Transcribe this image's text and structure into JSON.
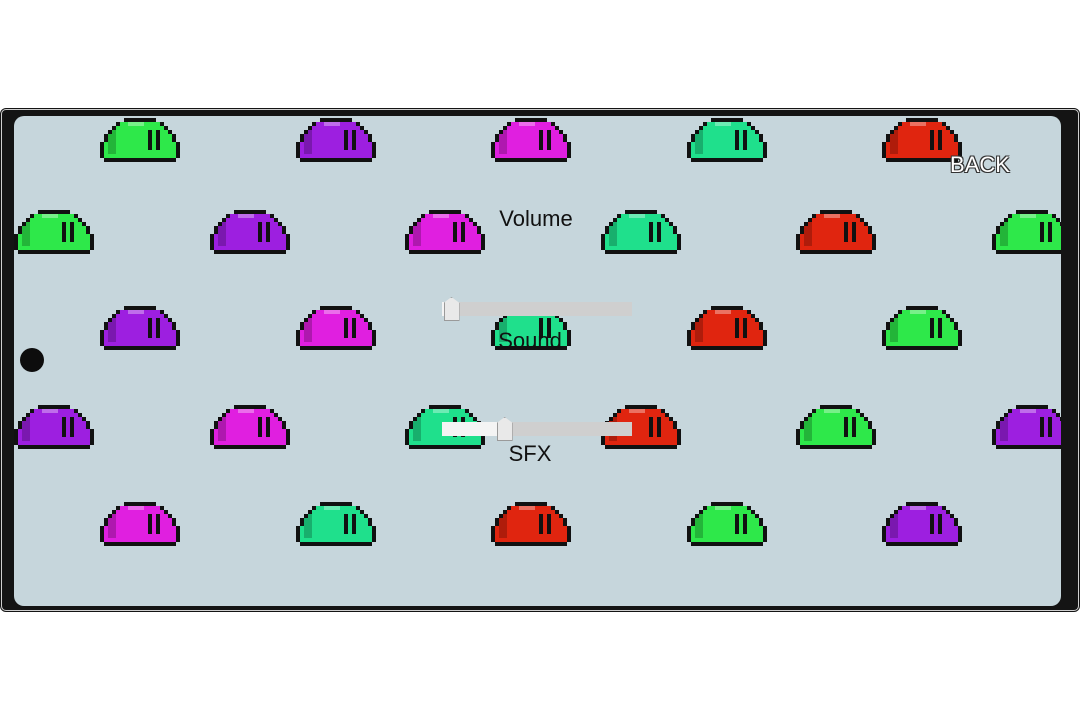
{
  "settings": {
    "back_label": "BACK",
    "volume_label": "Volume",
    "sound_label": "Sound",
    "sfx_label": "SFX",
    "sound_slider_value": 0.05,
    "sfx_slider_value": 0.33
  },
  "colors": {
    "frame": "#141414",
    "screen_bg": "#c6d6dc",
    "slime_green": "#2ee84a",
    "slime_purple": "#9d1fe0",
    "slime_magenta": "#e01fe0",
    "slime_teal": "#1fe08c",
    "slime_red": "#e0250f"
  },
  "background_pattern": {
    "rows": [
      [
        "slime_green",
        "slime_purple",
        "slime_magenta",
        "slime_teal",
        "slime_red"
      ],
      [
        "slime_green",
        "slime_purple",
        "slime_magenta",
        "slime_teal",
        "slime_red",
        "slime_green"
      ],
      [
        "slime_purple",
        "slime_magenta",
        "slime_teal",
        "slime_red",
        "slime_green"
      ],
      [
        "slime_purple",
        "slime_magenta",
        "slime_teal",
        "slime_red",
        "slime_green",
        "slime_purple"
      ],
      [
        "slime_magenta",
        "slime_teal",
        "slime_red",
        "slime_green",
        "slime_purple"
      ]
    ]
  }
}
